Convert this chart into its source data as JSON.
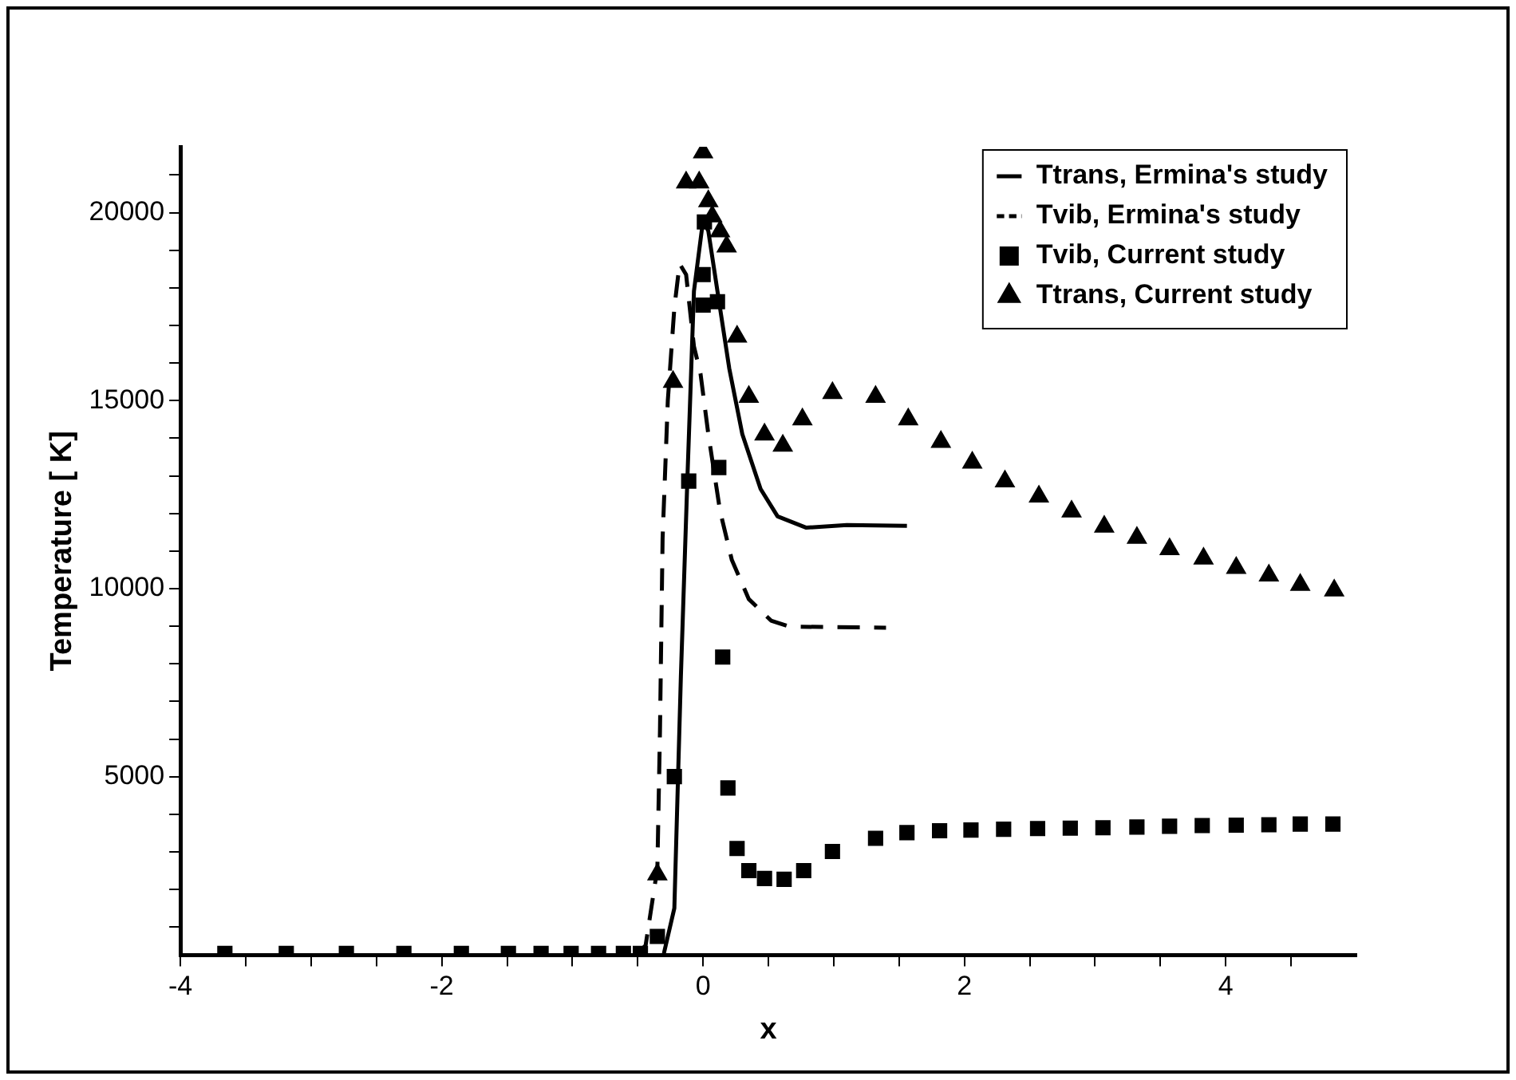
{
  "chart_data": {
    "type": "line",
    "xlabel": "x",
    "ylabel": "Temperature [ K]",
    "xlim": [
      -4,
      5
    ],
    "ylim": [
      250,
      21750
    ],
    "xticks": [
      -4,
      {
        "value": -3.5,
        "label": null
      },
      {
        "value": -3,
        "label": null
      },
      {
        "value": -2.5,
        "label": null
      },
      -2,
      {
        "value": -1.5,
        "label": null
      },
      {
        "value": -1,
        "label": null
      },
      {
        "value": -0.5,
        "label": null
      },
      0,
      {
        "value": 0.5,
        "label": null
      },
      {
        "value": 1,
        "label": null
      },
      {
        "value": 1.5,
        "label": null
      },
      2,
      {
        "value": 2.5,
        "label": null
      },
      {
        "value": 3,
        "label": null
      },
      {
        "value": 3.5,
        "label": null
      },
      4,
      {
        "value": 4.5,
        "label": null
      }
    ],
    "yticks": [
      {
        "value": 1000,
        "label": null
      },
      {
        "value": 2000,
        "label": null
      },
      {
        "value": 3000,
        "label": null
      },
      {
        "value": 4000,
        "label": null
      },
      5000,
      {
        "value": 6000,
        "label": null
      },
      {
        "value": 7000,
        "label": null
      },
      {
        "value": 8000,
        "label": null
      },
      {
        "value": 9000,
        "label": null
      },
      10000,
      {
        "value": 11000,
        "label": null
      },
      {
        "value": 12000,
        "label": null
      },
      {
        "value": 13000,
        "label": null
      },
      {
        "value": 14000,
        "label": null
      },
      15000,
      {
        "value": 16000,
        "label": null
      },
      {
        "value": 17000,
        "label": null
      },
      {
        "value": 18000,
        "label": null
      },
      {
        "value": 19000,
        "label": null
      },
      20000,
      {
        "value": 21000,
        "label": null
      }
    ],
    "grid": false,
    "legend": "top right",
    "series": [
      {
        "name": "Ttrans, Ermina's study",
        "type": "line",
        "color": "#000000",
        "marker": "none",
        "line_style": "solid",
        "x": [
          -0.3,
          -0.22,
          -0.17,
          -0.12,
          -0.07,
          0,
          0.04,
          0.11,
          0.2,
          0.3,
          0.44,
          0.57,
          0.79,
          1.1,
          1.56
        ],
        "values": [
          300,
          1500,
          7670,
          12940,
          17910,
          19800,
          19510,
          17910,
          15860,
          14110,
          12650,
          11920,
          11620,
          11690,
          11670
        ]
      },
      {
        "name": "Tvib, Ermina's study",
        "type": "line",
        "color": "#000000",
        "marker": "none",
        "line_style": "dashed",
        "x": [
          -0.5,
          -0.44,
          -0.35,
          -0.33,
          -0.31,
          -0.27,
          -0.22,
          -0.18,
          -0.13,
          -0.07,
          -0.02,
          0.04,
          0.13,
          0.22,
          0.35,
          0.52,
          0.66,
          1.4
        ],
        "values": [
          300,
          510,
          2560,
          6230,
          11330,
          15000,
          17470,
          18640,
          18350,
          16440,
          15720,
          14110,
          12060,
          10760,
          9720,
          9150,
          8990,
          8960
        ]
      },
      {
        "name": "Tvib, Current study",
        "type": "scatter",
        "color": "#000000",
        "marker": "square",
        "x": [
          -3.66,
          -3.19,
          -2.73,
          -2.29,
          -1.85,
          -1.49,
          -1.24,
          -1.01,
          -0.8,
          -0.61,
          -0.48,
          -0.35,
          -0.22,
          -0.11,
          0,
          0.11,
          0,
          0.01,
          0.12,
          0.15,
          0.19,
          0.26,
          0.35,
          0.47,
          0.62,
          0.77,
          0.99,
          1.32,
          1.56,
          1.81,
          2.05,
          2.3,
          2.56,
          2.81,
          3.06,
          3.32,
          3.57,
          3.82,
          4.08,
          4.33,
          4.57,
          4.82
        ],
        "values": [
          300,
          300,
          300,
          300,
          300,
          300,
          300,
          300,
          300,
          300,
          300,
          750,
          5000,
          12860,
          17540,
          17630,
          18350,
          19750,
          13220,
          8180,
          4700,
          3090,
          2500,
          2290,
          2270,
          2500,
          3010,
          3360,
          3510,
          3560,
          3580,
          3600,
          3620,
          3630,
          3640,
          3660,
          3680,
          3700,
          3710,
          3720,
          3740,
          3740
        ]
      },
      {
        "name": "Ttrans, Current study",
        "type": "scatter",
        "color": "#000000",
        "marker": "triangle",
        "x": [
          -0.35,
          -0.23,
          0,
          -0.03,
          -0.13,
          0.04,
          0.07,
          0.13,
          0.18,
          0.26,
          0.35,
          0.47,
          0.61,
          0.76,
          0.99,
          1.32,
          1.57,
          1.82,
          2.06,
          2.31,
          2.57,
          2.82,
          3.07,
          3.32,
          3.57,
          3.83,
          4.08,
          4.33,
          4.57,
          4.83
        ],
        "values": [
          2400,
          15500,
          21600,
          20800,
          20800,
          20300,
          19900,
          19500,
          19100,
          16700,
          15100,
          14100,
          13800,
          14500,
          15200,
          15100,
          14500,
          13900,
          13350,
          12850,
          12450,
          12050,
          11650,
          11350,
          11050,
          10800,
          10550,
          10350,
          10100,
          9950
        ]
      }
    ]
  }
}
